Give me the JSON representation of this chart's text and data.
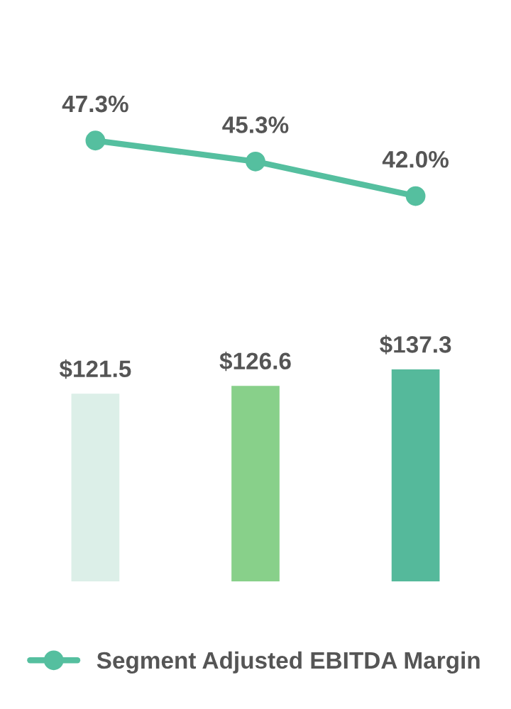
{
  "chart_data": [
    {
      "type": "line",
      "categories": [
        null,
        null,
        null
      ],
      "legend": "bottom",
      "marker": "circle",
      "series": [
        {
          "name": "Segment Adjusted EBITDA Margin",
          "color": "#55bf9f",
          "values": [
            47.3,
            45.3,
            42.0
          ],
          "value_labels": [
            "47.3%",
            "45.3%",
            "42.0%"
          ]
        }
      ]
    },
    {
      "type": "bar",
      "categories": [
        null,
        null,
        null
      ],
      "colors": [
        "#dcefe8",
        "#88d08a",
        "#55b99b"
      ],
      "values": [
        121.5,
        126.6,
        137.3
      ],
      "value_labels": [
        "$121.5",
        "$126.6",
        "$137.3"
      ]
    }
  ]
}
